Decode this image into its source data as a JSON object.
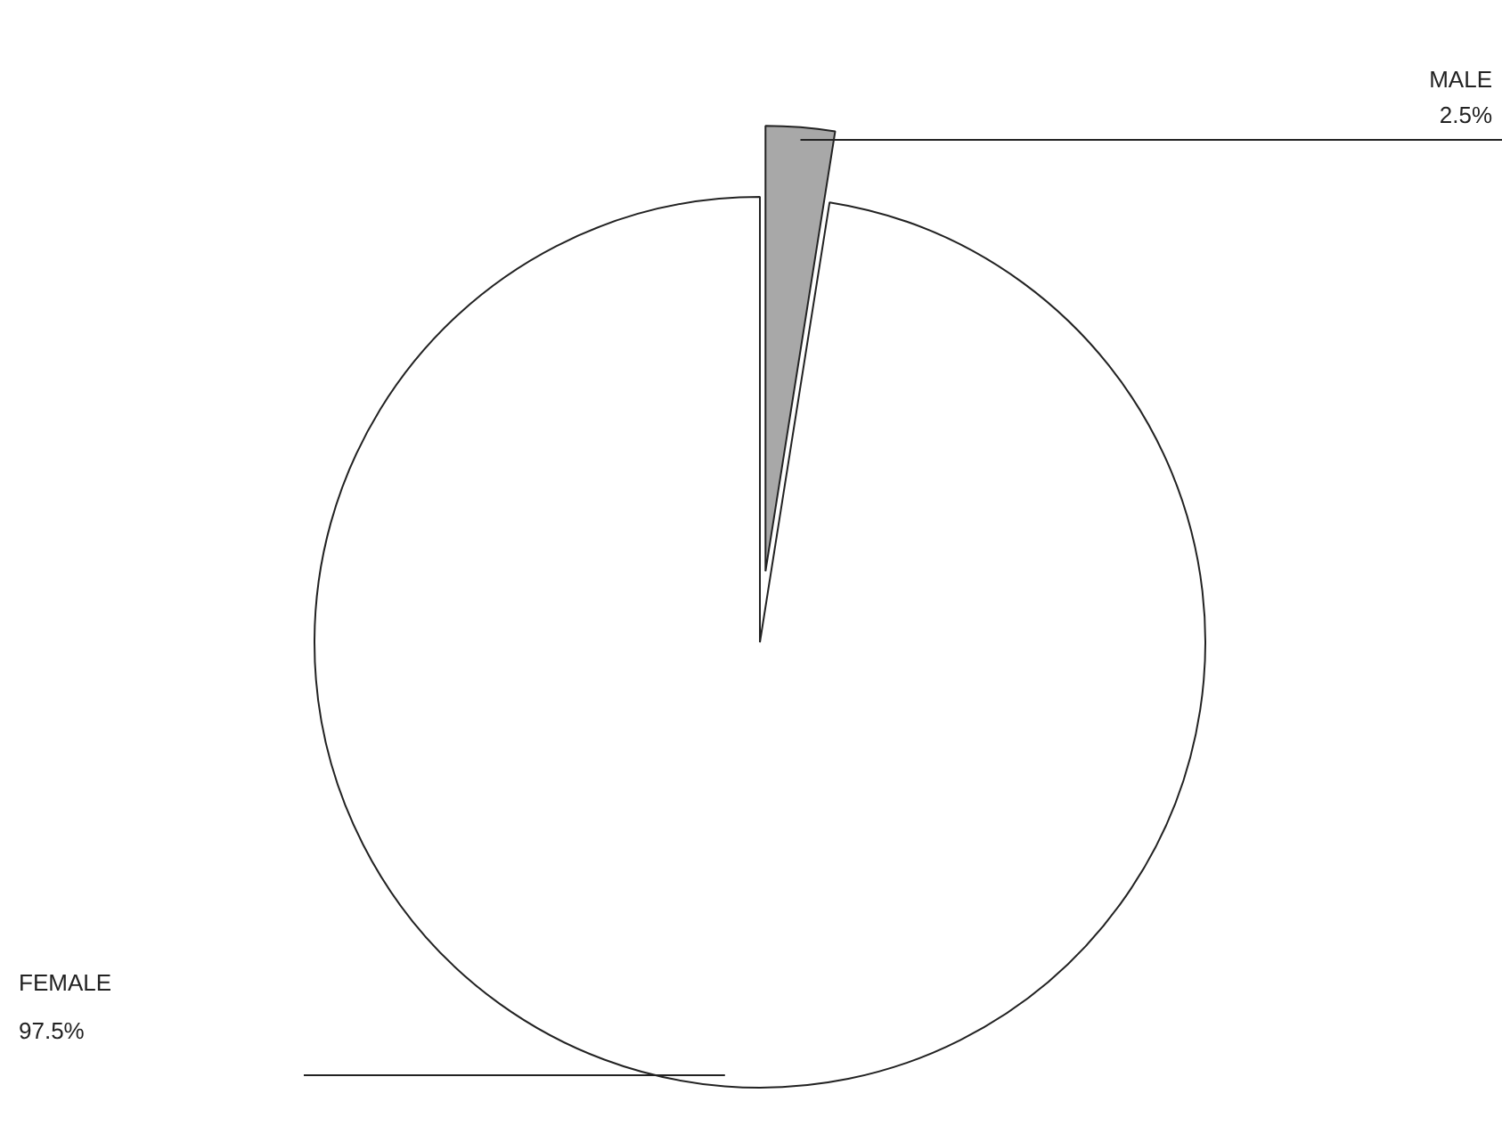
{
  "chart_data": {
    "type": "pie",
    "categories": [
      "MALE",
      "FEMALE"
    ],
    "values": [
      2.5,
      97.5
    ],
    "colors": [
      "#a8a8a8",
      "#ffffff"
    ],
    "value_labels": [
      "2.5%",
      "97.5%"
    ]
  }
}
